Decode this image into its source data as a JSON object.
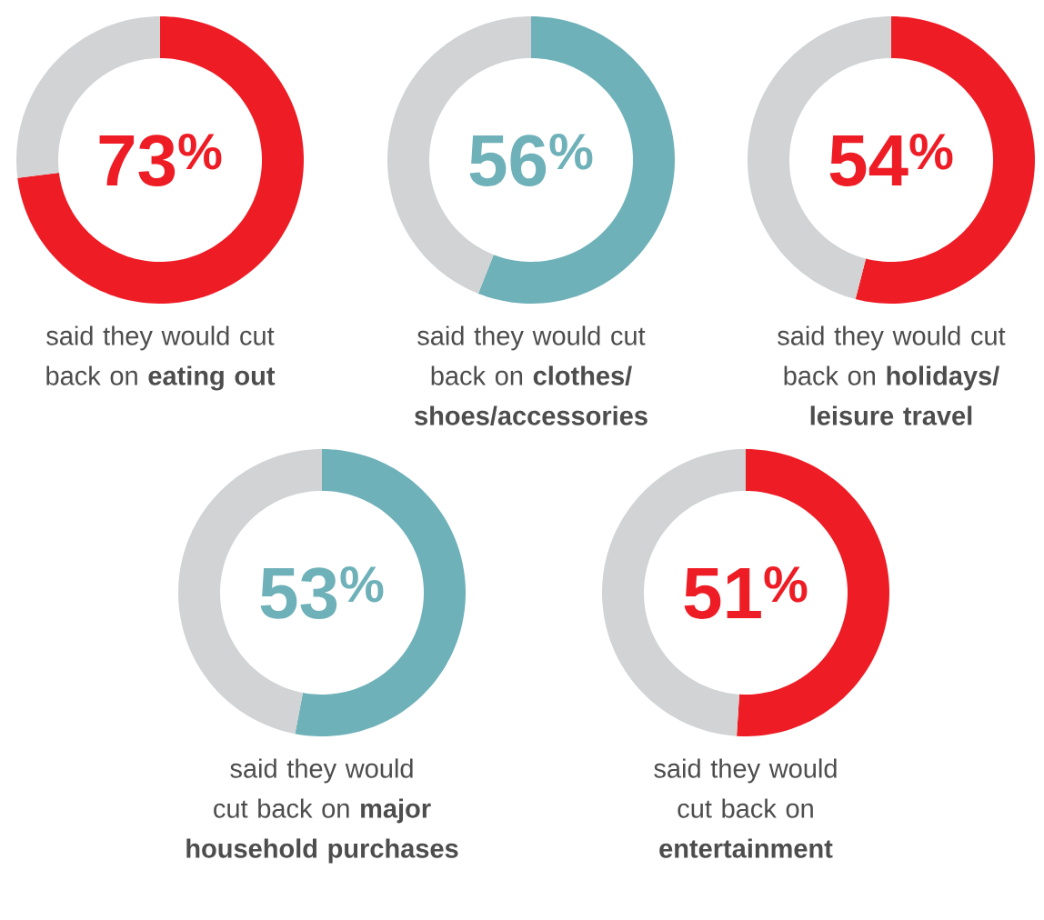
{
  "chart_data": [
    {
      "type": "donut",
      "categories": [
        null,
        null
      ],
      "values": [
        73,
        27
      ],
      "colors": [
        "#ee1c25",
        "#d1d3d4"
      ],
      "annotations": [
        "73$^{%}$",
        "said they would cut back on **eating out**"
      ]
    },
    {
      "type": "donut",
      "categories": [
        null,
        null
      ],
      "values": [
        56,
        44
      ],
      "colors": [
        "#6fb1b9",
        "#d1d3d4"
      ],
      "annotations": [
        "56$^{%}$",
        "said they would cut back on **clothes/ shoes/accessories**"
      ]
    },
    {
      "type": "donut",
      "categories": [
        null,
        null
      ],
      "values": [
        54,
        46
      ],
      "colors": [
        "#ee1c25",
        "#d1d3d4"
      ],
      "annotations": [
        "54$^{%}$",
        "said they would cut back on **holidays/ leisure travel**"
      ]
    },
    {
      "type": "donut",
      "categories": [
        null,
        null
      ],
      "values": [
        53,
        47
      ],
      "colors": [
        "#6fb1b9",
        "#d1d3d4"
      ],
      "annotations": [
        "53$^{%}$",
        "said they would cut back on **major household purchases**"
      ]
    },
    {
      "type": "donut",
      "categories": [
        null,
        null
      ],
      "values": [
        51,
        49
      ],
      "colors": [
        "#ee1c25",
        "#d1d3d4"
      ],
      "annotations": [
        "51$^{%}$",
        "said they would cut back on **entertainment**"
      ]
    }
  ]
}
